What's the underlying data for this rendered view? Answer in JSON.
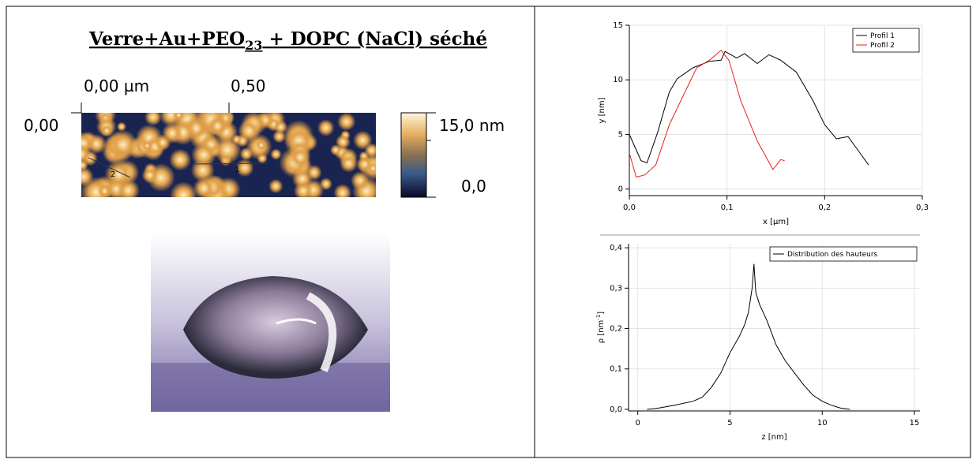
{
  "title": {
    "main": "Verre+Au+PEO",
    "subscript": "23",
    "end": " + DOPC (NaCl) séché"
  },
  "afm": {
    "x_label_start": "0,00 µm",
    "x_label_mid": "0,50",
    "y_label_start": "0,00",
    "scale_max": "15,0 nm",
    "scale_min": "0,0",
    "profile_1": "1",
    "profile_2": "2"
  },
  "chart_data": [
    {
      "type": "line",
      "xlabel": "x [µm]",
      "ylabel": "y [nm]",
      "xlim": [
        0,
        0.3
      ],
      "ylim": [
        -0.6,
        15
      ],
      "xticks": [
        {
          "value": 0,
          "label": "0,0"
        },
        {
          "value": 0.1,
          "label": "0,1"
        },
        {
          "value": 0.2,
          "label": "0,2"
        },
        {
          "value": 0.3,
          "label": "0,3"
        }
      ],
      "yticks": [
        0,
        5,
        10,
        15
      ],
      "grid": true,
      "legend": "top-right",
      "series": [
        {
          "name": "Profil 1",
          "color": "#000000",
          "x": [
            0,
            0.012,
            0.018,
            0.029,
            0.041,
            0.049,
            0.065,
            0.082,
            0.094,
            0.098,
            0.11,
            0.118,
            0.131,
            0.143,
            0.155,
            0.171,
            0.188,
            0.2,
            0.212,
            0.224,
            0.233,
            0.245
          ],
          "values": [
            5.0,
            2.6,
            2.4,
            5.2,
            8.9,
            10.1,
            11.1,
            11.7,
            11.8,
            12.6,
            12.0,
            12.4,
            11.5,
            12.3,
            11.8,
            10.7,
            8.1,
            5.9,
            4.6,
            4.8,
            3.7,
            2.2
          ]
        },
        {
          "name": "Profil 2",
          "color": "#e8201c",
          "x": [
            0,
            0.007,
            0.016,
            0.027,
            0.041,
            0.057,
            0.069,
            0.082,
            0.094,
            0.102,
            0.114,
            0.131,
            0.147,
            0.155,
            0.159
          ],
          "values": [
            3.3,
            1.1,
            1.3,
            2.2,
            5.9,
            8.9,
            11.1,
            11.8,
            12.7,
            11.8,
            8.1,
            4.4,
            1.8,
            2.7,
            2.6
          ]
        }
      ]
    },
    {
      "type": "line",
      "xlabel": "z [nm]",
      "ylabel": "ρ [nm",
      "ylabel_superscript": "-1",
      "ylabel_end": "]",
      "xlim": [
        -0.5,
        15.3
      ],
      "ylim": [
        -0.004,
        0.41
      ],
      "xticks": [
        0,
        5,
        10,
        15
      ],
      "yticks": [
        {
          "value": 0,
          "label": "0,0"
        },
        {
          "value": 0.1,
          "label": "0,1"
        },
        {
          "value": 0.2,
          "label": "0,2"
        },
        {
          "value": 0.3,
          "label": "0,3"
        },
        {
          "value": 0.4,
          "label": "0,4"
        }
      ],
      "grid": true,
      "legend": "top-right",
      "series": [
        {
          "name": "Distribution des hauteurs",
          "color": "#000000",
          "x": [
            0.5,
            1,
            2,
            3,
            3.5,
            4,
            4.5,
            5,
            5.5,
            5.8,
            6,
            6.2,
            6.3,
            6.4,
            6.6,
            7,
            7.5,
            8,
            8.5,
            9,
            9.5,
            10,
            10.5,
            11,
            11.5
          ],
          "values": [
            0,
            0.002,
            0.01,
            0.02,
            0.03,
            0.055,
            0.09,
            0.14,
            0.18,
            0.21,
            0.24,
            0.3,
            0.36,
            0.29,
            0.26,
            0.22,
            0.16,
            0.12,
            0.09,
            0.06,
            0.035,
            0.02,
            0.01,
            0.003,
            0
          ]
        }
      ]
    }
  ]
}
